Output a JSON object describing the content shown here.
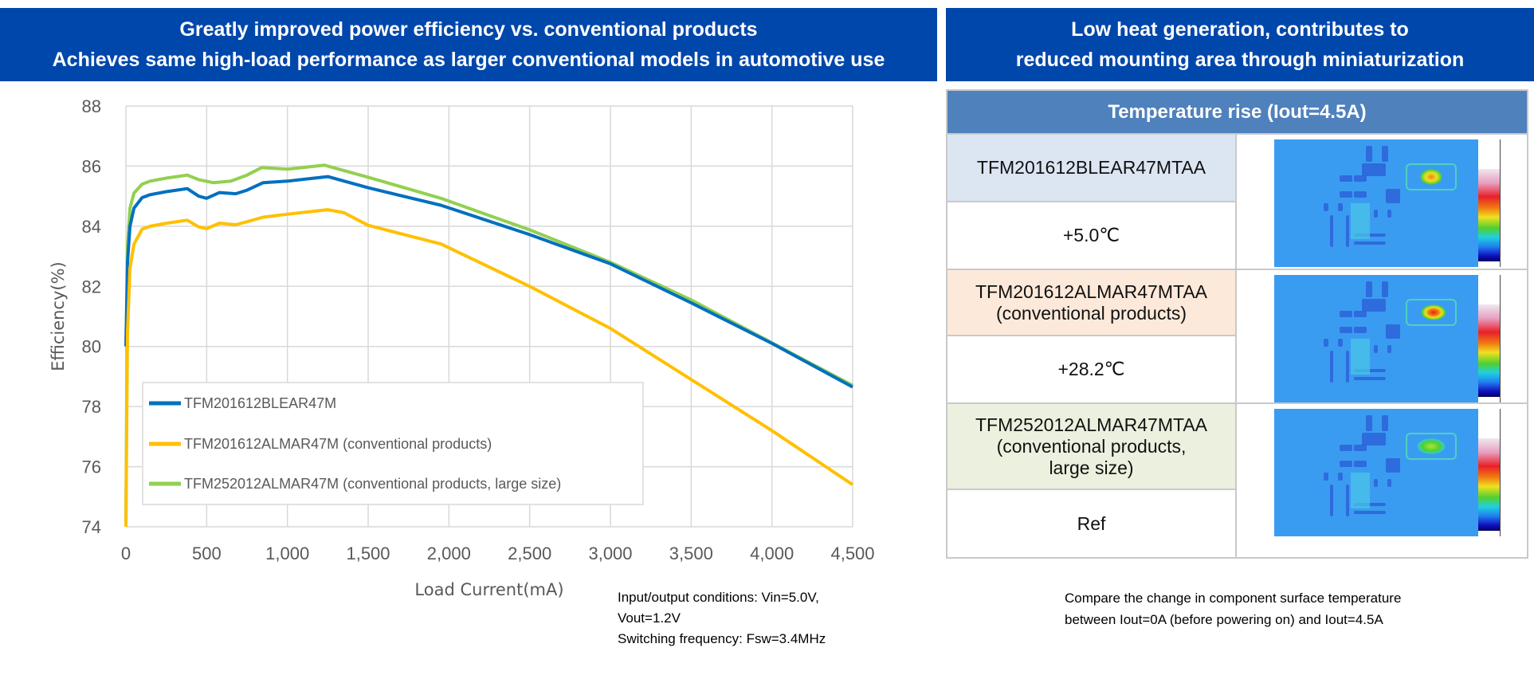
{
  "left_banner": {
    "line1": "Greatly improved power efficiency vs. conventional products",
    "line2": "Achieves same high-load performance as larger conventional models in automotive use"
  },
  "right_banner": {
    "line1": "Low heat generation, contributes to",
    "line2": "reduced mounting area through miniaturization"
  },
  "chart_data": {
    "type": "line",
    "xlabel": "Load Current(mA)",
    "ylabel": "Efficiency(%)",
    "xlim": [
      0,
      4500
    ],
    "ylim": [
      74,
      88
    ],
    "xticks": [
      "0",
      "500",
      "1,000",
      "1,500",
      "2,000",
      "2,500",
      "3,000",
      "3,500",
      "4,000",
      "4,500"
    ],
    "yticks": [
      "74",
      "76",
      "78",
      "80",
      "82",
      "84",
      "86",
      "88"
    ],
    "grid": true,
    "legend_position": "bottom-left",
    "series": [
      {
        "name": "TFM201612BLEAR47M",
        "color": "#0070C0",
        "x": [
          0,
          10,
          25,
          50,
          100,
          150,
          250,
          380,
          450,
          500,
          580,
          680,
          750,
          850,
          1000,
          1250,
          1500,
          1950,
          2500,
          3000,
          3500,
          4000,
          4500
        ],
        "y": [
          80,
          82.8,
          84.0,
          84.6,
          84.95,
          85.05,
          85.15,
          85.25,
          85.0,
          84.93,
          85.12,
          85.08,
          85.2,
          85.45,
          85.5,
          85.65,
          85.28,
          84.7,
          83.72,
          82.75,
          81.45,
          80.1,
          78.65
        ]
      },
      {
        "name": "TFM201612ALMAR47M (conventional products)",
        "color": "#FFC000",
        "x": [
          0,
          10,
          25,
          50,
          100,
          150,
          250,
          380,
          450,
          500,
          580,
          680,
          750,
          850,
          1000,
          1250,
          1350,
          1500,
          1950,
          2500,
          3000,
          3500,
          4000,
          4500
        ],
        "y": [
          74,
          80.5,
          82.6,
          83.4,
          83.9,
          84.0,
          84.1,
          84.2,
          83.98,
          83.92,
          84.1,
          84.05,
          84.15,
          84.3,
          84.4,
          84.55,
          84.45,
          84.03,
          83.41,
          82.0,
          80.6,
          78.9,
          77.2,
          75.4
        ]
      },
      {
        "name": "TFM252012ALMAR47M (conventional products, large size)",
        "color": "#92D050",
        "x": [
          0,
          10,
          25,
          50,
          100,
          150,
          250,
          380,
          450,
          540,
          650,
          750,
          840,
          1000,
          1230,
          1500,
          1950,
          2500,
          3000,
          3500,
          4000,
          4500
        ],
        "y": [
          74,
          83.3,
          84.6,
          85.1,
          85.4,
          85.5,
          85.6,
          85.7,
          85.55,
          85.45,
          85.5,
          85.7,
          85.95,
          85.9,
          86.03,
          85.63,
          84.93,
          83.88,
          82.8,
          81.55,
          80.12,
          78.7
        ]
      }
    ]
  },
  "conditions": {
    "line1": "Input/output conditions: Vin=5.0V,",
    "line2": "Vout=1.2V",
    "line3": "Switching frequency: Fsw=3.4MHz"
  },
  "temperature_table": {
    "header": "Temperature rise (Iout=4.5A)",
    "rows": [
      {
        "name_line1": "TFM201612BLEAR47MTAA",
        "name_line2": "",
        "name_line3": "",
        "value": "+5.0℃",
        "color": "#DCE6F2",
        "hotspot": "orange"
      },
      {
        "name_line1": "TFM201612ALMAR47MTAA",
        "name_line2": "(conventional products)",
        "name_line3": "",
        "value": "+28.2℃",
        "color": "#FDE9D9",
        "hotspot": "red"
      },
      {
        "name_line1": "TFM252012ALMAR47MTAA",
        "name_line2": "(conventional products,",
        "name_line3": "large size)",
        "value": "Ref",
        "color": "#EBF1DE",
        "hotspot": "green"
      }
    ]
  },
  "table_note": {
    "line1": "Compare the change in component surface temperature",
    "line2": "between Iout=0A (before powering on) and Iout=4.5A"
  }
}
